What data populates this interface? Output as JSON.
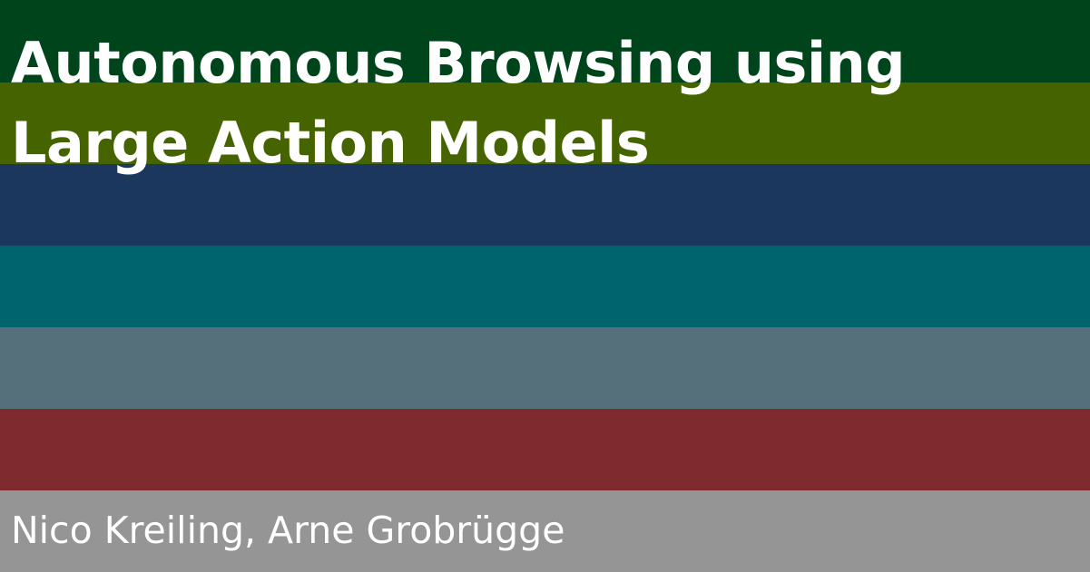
{
  "slide": {
    "title_line_1": "Autonomous Browsing using",
    "title_line_2": "Large Action Models",
    "authors": "Nico Kreiling, Arne Grobrügge"
  },
  "colors": {
    "text": "#ffffff",
    "stripes": [
      "#00441b",
      "#456400",
      "#1c375e",
      "#00646e",
      "#56707b",
      "#7e2a2f",
      "#959595"
    ]
  }
}
